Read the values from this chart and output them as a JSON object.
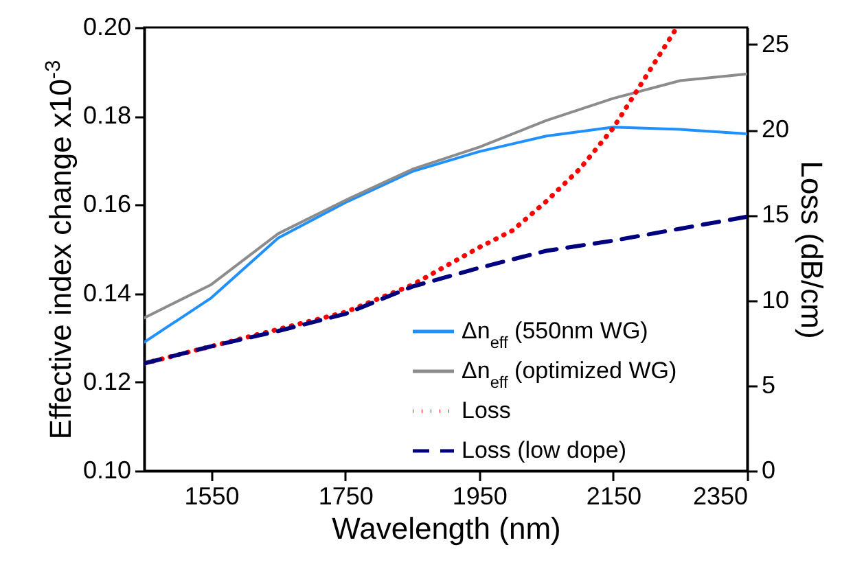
{
  "chart_data": {
    "type": "line",
    "xlabel": "Wavelength (nm)",
    "ylabel": "Effective index change x10$^{-3}$",
    "y2label": "Loss (dB/cm)",
    "xlim": [
      1450,
      2350
    ],
    "xticks": [
      1550,
      1750,
      1950,
      2150,
      2350
    ],
    "ylim": [
      0.1,
      0.2
    ],
    "yticks": [
      {
        "value": 0.1,
        "label": "0.10"
      },
      0.12,
      0.14,
      0.16,
      0.18,
      {
        "value": 0.2,
        "label": "0.20"
      }
    ],
    "y2lim": [
      0,
      26
    ],
    "y2ticks": [
      0,
      5,
      10,
      15,
      20,
      25
    ],
    "legend": "bottom right",
    "grid": false,
    "series": [
      {
        "name": "Δn$_{eff}$ (550nm WG)",
        "color": "#1e90ff",
        "line_style": "solid",
        "x": [
          1450,
          1550,
          1650,
          1750,
          1850,
          1950,
          2050,
          2150,
          2250,
          2350
        ],
        "values": [
          0.129,
          0.139,
          0.1525,
          0.1605,
          0.1675,
          0.172,
          0.1755,
          0.1775,
          0.177,
          0.176
        ]
      },
      {
        "name": "Δn$_{eff}$ (optimized WG)",
        "color": "#8c8c8c",
        "line_style": "solid",
        "x": [
          1450,
          1550,
          1650,
          1750,
          1850,
          1950,
          2050,
          2150,
          2250,
          2350
        ],
        "values": [
          0.1345,
          0.142,
          0.1535,
          0.161,
          0.168,
          0.173,
          0.179,
          0.184,
          0.188,
          0.1895
        ]
      },
      {
        "name": "Loss",
        "color": "#ff0000",
        "line_style": "dotted",
        "axis": "y2",
        "x": [
          1450,
          1550,
          1650,
          1750,
          1850,
          1950,
          2000,
          2050,
          2100,
          2150,
          2200,
          2245
        ],
        "values": [
          6.3,
          7.3,
          8.3,
          9.3,
          10.9,
          13.1,
          14.1,
          15.8,
          17.7,
          20.1,
          23.2,
          26.0
        ]
      },
      {
        "name": "Loss (low dope)",
        "color": "#00007f",
        "line_style": "dashed",
        "axis": "y2",
        "x": [
          1450,
          1550,
          1650,
          1750,
          1850,
          1950,
          2050,
          2150,
          2250,
          2350
        ],
        "values": [
          6.3,
          7.3,
          8.2,
          9.2,
          10.8,
          11.9,
          12.9,
          13.5,
          14.2,
          14.9
        ]
      }
    ]
  }
}
